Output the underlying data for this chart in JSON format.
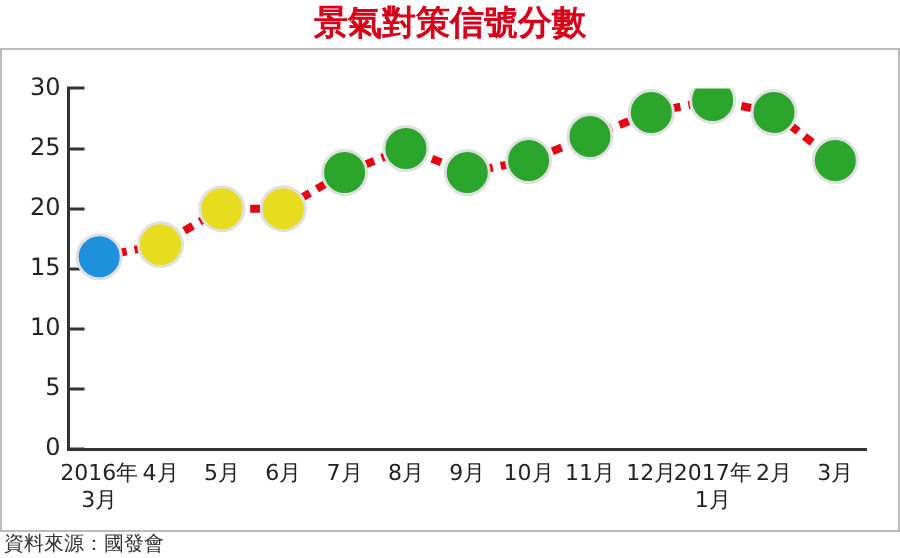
{
  "chart_data": {
    "type": "line",
    "title": "景氣對策信號分數",
    "categories": [
      "2016年\n3月",
      "4月",
      "5月",
      "6月",
      "7月",
      "8月",
      "9月",
      "10月",
      "11月",
      "12月",
      "2017年\n1月",
      "2月",
      "3月"
    ],
    "series": [
      {
        "color": "#e60012",
        "colors": [
          "#1e90dc",
          "#e8dc1e",
          "#e8dc1e",
          "#e8dc1e",
          "#2ca52c",
          "#2ca52c",
          "#2ca52c",
          "#2ca52c",
          "#2ca52c",
          "#2ca52c",
          "#2ca52c",
          "#2ca52c",
          "#2ca52c"
        ],
        "values": [
          16,
          17,
          20,
          20,
          23,
          25,
          23,
          24,
          26,
          28,
          29,
          28,
          24
        ]
      }
    ],
    "ylim": [
      0,
      30
    ],
    "yticks": [
      0,
      5,
      10,
      15,
      20,
      25,
      30
    ],
    "grid": false,
    "legend": false,
    "marker": "circle",
    "line_style": "dashed",
    "annotations": [
      "資料來源：國發會"
    ]
  }
}
